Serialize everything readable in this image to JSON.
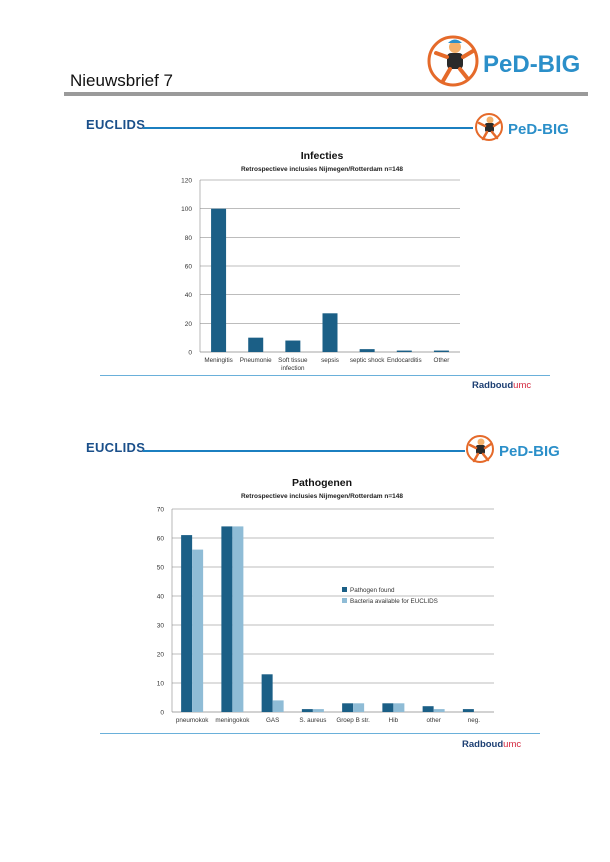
{
  "document": {
    "title": "Nieuwsbrief 7",
    "brand": "PeD-BIG",
    "partner_logo": "EUCLIDS",
    "footer_logo": {
      "main": "Radboud",
      "suffix": "umc"
    }
  },
  "colors": {
    "primary_series": "#1b5f86",
    "secondary_series": "#8fbcd6",
    "rule_blue": "#1b7fc0",
    "header_gray": "#9a9a9a"
  },
  "chart_data": [
    {
      "type": "bar",
      "title": "Infecties",
      "subtitle": "Retrospectieve inclusies Nijmegen/Rotterdam n=148",
      "categories": [
        "Meningitis",
        "Pneumonie",
        "Soft tissue infection",
        "sepsis",
        "septic shock",
        "Endocarditis",
        "Other"
      ],
      "category_lines": [
        [
          "Meningitis"
        ],
        [
          "Pneumonie"
        ],
        [
          "Soft tissue",
          "infection"
        ],
        [
          "sepsis"
        ],
        [
          "septic shock"
        ],
        [
          "Endocarditis"
        ],
        [
          "Other"
        ]
      ],
      "values": [
        100,
        10,
        8,
        27,
        2,
        1,
        1
      ],
      "ylim": [
        0,
        120
      ],
      "yticks": [
        "0",
        "20",
        "40",
        "60",
        "80",
        "100",
        "120"
      ],
      "grid": true,
      "legend": "none"
    },
    {
      "type": "bar",
      "title": "Pathogenen",
      "subtitle": "Retrospectieve inclusies Nijmegen/Rotterdam n=148",
      "categories": [
        "pneumokok",
        "meningokok",
        "GAS",
        "S. aureus",
        "Groep B str.",
        "Hib",
        "other",
        "neg."
      ],
      "series": [
        {
          "name": "Pathogen found",
          "values": [
            61,
            64,
            13,
            1,
            3,
            3,
            2,
            1
          ]
        },
        {
          "name": "Bacteria available for EUCLIDS",
          "values": [
            56,
            64,
            4,
            1,
            3,
            3,
            1,
            0
          ]
        }
      ],
      "ylim": [
        0,
        70
      ],
      "yticks": [
        "0",
        "10",
        "20",
        "30",
        "40",
        "50",
        "60",
        "70"
      ],
      "grid": true,
      "legend": "right"
    }
  ]
}
